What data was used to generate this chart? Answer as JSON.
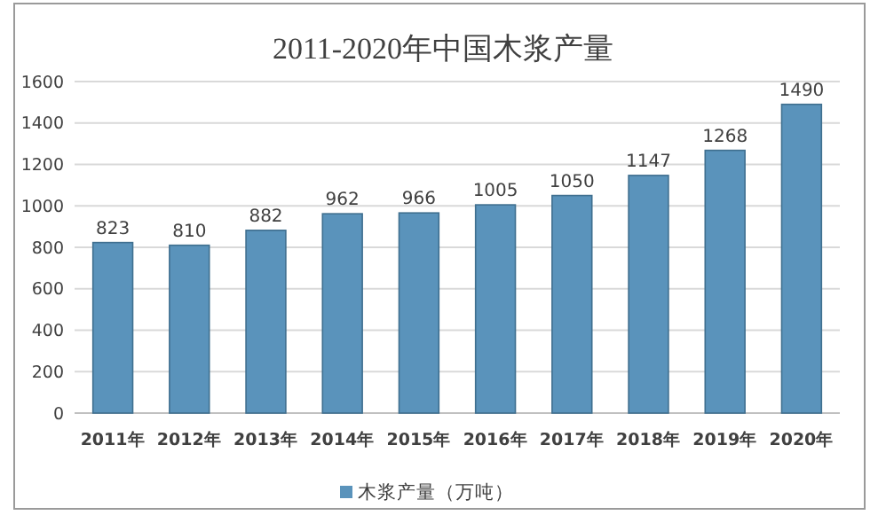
{
  "chart_data": {
    "type": "bar",
    "title": "2011-2020年中国木浆产量",
    "categories": [
      "2011年",
      "2012年",
      "2013年",
      "2014年",
      "2015年",
      "2016年",
      "2017年",
      "2018年",
      "2019年",
      "2020年"
    ],
    "series": [
      {
        "name": "木浆产量（万吨）",
        "color": "#5a93bb",
        "values": [
          823,
          810,
          882,
          962,
          966,
          1005,
          1050,
          1147,
          1268,
          1490
        ]
      }
    ],
    "ylim": [
      0,
      1600
    ],
    "yticks": [
      0,
      200,
      400,
      600,
      800,
      1000,
      1200,
      1400,
      1600
    ],
    "grid": "y",
    "legend": "bottom",
    "data_labels": true
  }
}
